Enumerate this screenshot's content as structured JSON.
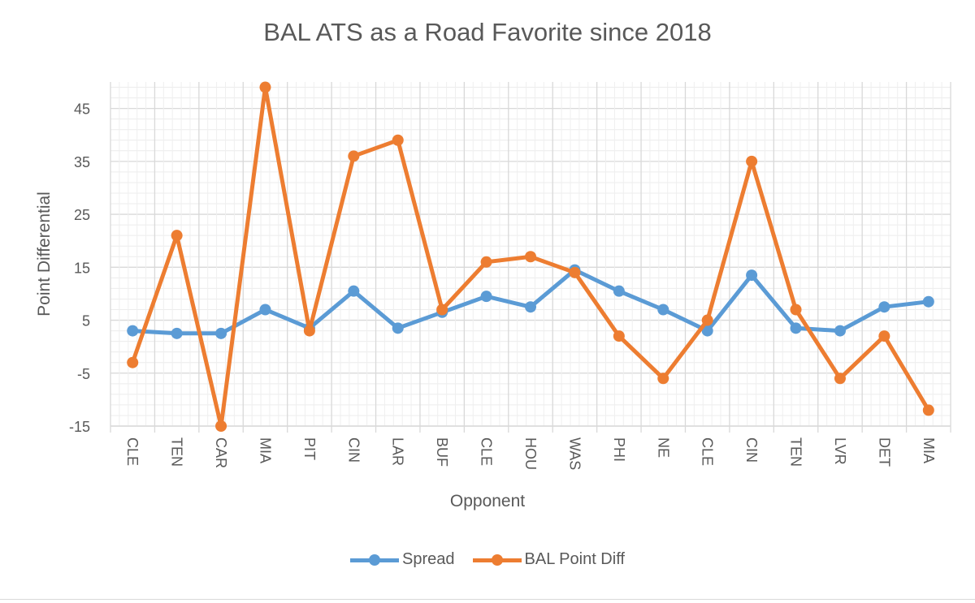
{
  "chart_data": {
    "type": "line",
    "title": "BAL ATS as a Road Favorite since 2018",
    "xlabel": "Opponent",
    "ylabel": "Point Differential",
    "categories": [
      "CLE",
      "TEN",
      "CAR",
      "MIA",
      "PIT",
      "CIN",
      "LAR",
      "BUF",
      "CLE",
      "HOU",
      "WAS",
      "PHI",
      "NE",
      "CLE",
      "CIN",
      "TEN",
      "LVR",
      "DET",
      "MIA"
    ],
    "series": [
      {
        "name": "Spread",
        "color": "#5b9bd5",
        "values": [
          3,
          2.5,
          2.5,
          7,
          3.5,
          10.5,
          3.5,
          6.5,
          9.5,
          7.5,
          14.5,
          10.5,
          7,
          3,
          13.5,
          3.5,
          3,
          7.5,
          8.5
        ]
      },
      {
        "name": "BAL Point Diff",
        "color": "#ed7d31",
        "values": [
          -3,
          21,
          -15,
          49,
          3,
          36,
          39,
          7,
          16,
          17,
          14,
          2,
          -6,
          5,
          35,
          7,
          -6,
          2,
          -12
        ]
      }
    ],
    "ylim": [
      -15,
      50
    ],
    "yticks": [
      -15,
      -5,
      5,
      15,
      25,
      35,
      45
    ],
    "grid": true,
    "legend": "bottom"
  }
}
